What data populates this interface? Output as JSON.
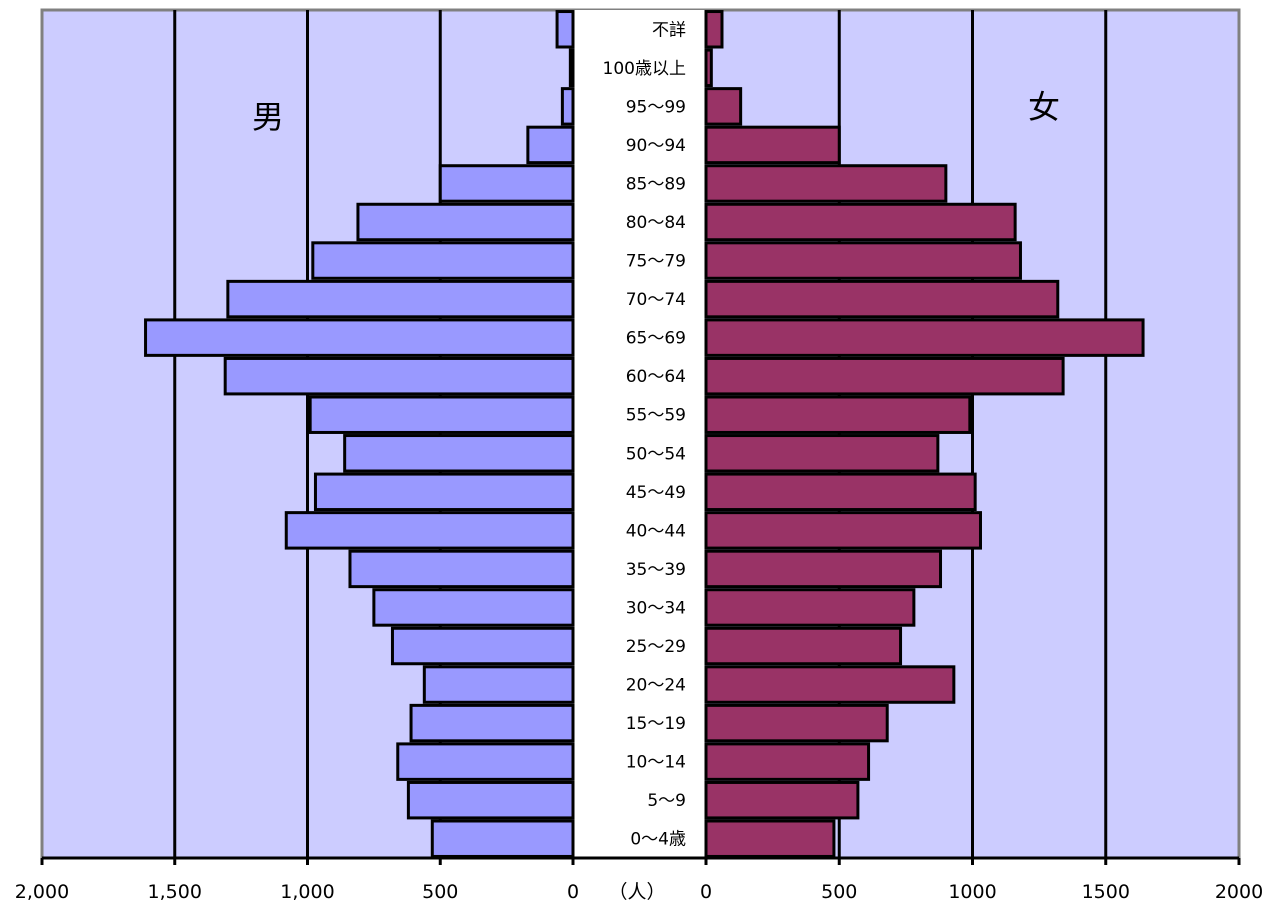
{
  "chart_data": {
    "type": "bar",
    "orientation": "horizontal",
    "chart_kind": "population pyramid",
    "categories": [
      "0〜4歳",
      "5〜9",
      "10〜14",
      "15〜19",
      "20〜24",
      "25〜29",
      "30〜34",
      "35〜39",
      "40〜44",
      "45〜49",
      "50〜54",
      "55〜59",
      "60〜64",
      "65〜69",
      "70〜74",
      "75〜79",
      "80〜84",
      "85〜89",
      "90〜94",
      "95〜99",
      "100歳以上",
      "不詳"
    ],
    "series": [
      {
        "name": "男",
        "color": "#9999ff",
        "values": [
          530,
          620,
          660,
          610,
          560,
          680,
          750,
          840,
          1080,
          970,
          860,
          990,
          1310,
          1610,
          1300,
          980,
          810,
          500,
          170,
          40,
          10,
          60
        ]
      },
      {
        "name": "女",
        "color": "#993366",
        "values": [
          480,
          570,
          610,
          680,
          930,
          730,
          780,
          880,
          1030,
          1010,
          870,
          990,
          1340,
          1640,
          1320,
          1180,
          1160,
          900,
          500,
          130,
          20,
          60
        ]
      }
    ],
    "left_axis": {
      "ticks": [
        "2,000",
        "1,500",
        "1,000",
        "500",
        "0"
      ],
      "range": [
        2000,
        0
      ]
    },
    "right_axis": {
      "ticks": [
        "0",
        "500",
        "1000",
        "1500",
        "2000"
      ],
      "range": [
        0,
        2000
      ]
    },
    "unit_label": "（人）",
    "plot_background": "#ccccff",
    "grid": true
  }
}
